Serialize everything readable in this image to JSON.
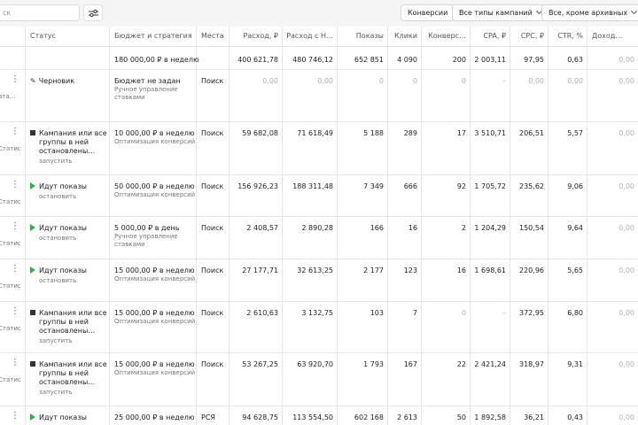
{
  "toolbar": {
    "search_placeholder": "ск",
    "filter_icon": "sliders-icon",
    "chip_conversions": "Конверсии",
    "chip_campaign_types": "Все типы кампаний",
    "chip_archive": "Все, кроме архивных"
  },
  "columns": [
    "Статус",
    "Бюджет и стратегия",
    "Места",
    "Расход, ₽",
    "Расход с Н…",
    "Показы",
    "Клики",
    "Конверс…",
    "CPA, ₽",
    "CPC, ₽",
    "CTR, %",
    "Доход…"
  ],
  "totals": {
    "budget": "180 000,00 ₽ в неделю",
    "spend": "400 621,78",
    "spend_vat": "480 746,12",
    "impressions": "652 851",
    "clicks": "4 090",
    "conversions": "200",
    "cpa": "2 003,11",
    "cpc": "97,95",
    "ctr": "0,63",
    "income": "0,00"
  },
  "rows": [
    {
      "left": "ата…",
      "status": [
        "Черновик"
      ],
      "status_icon": "pencil",
      "action": "",
      "budget": "Бюджет не задан",
      "strategy": [
        "Ручное управление",
        "ставками"
      ],
      "places": "Поиск",
      "spend": "0,00",
      "spend_vat": "0,00",
      "impressions": "0",
      "clicks": "0",
      "conversions": "0",
      "cpa": "–",
      "cpc": "0,00",
      "ctr": "0,00",
      "income": "0,00",
      "muted": true
    },
    {
      "left": "Статис",
      "status": [
        "Кампания или все",
        "группы в ней",
        "остановлены…"
      ],
      "status_icon": "stop",
      "action": "запустить",
      "budget": "10 000,00 ₽ в неделю",
      "strategy": [
        "Оптимизация конверсий"
      ],
      "places": "Поиск",
      "spend": "59 682,08",
      "spend_vat": "71 618,49",
      "impressions": "5 188",
      "clicks": "289",
      "conversions": "17",
      "cpa": "3 510,71",
      "cpc": "206,51",
      "ctr": "5,57",
      "income": "0,00",
      "muted": false
    },
    {
      "left": "Статис",
      "status": [
        "Идут показы"
      ],
      "status_icon": "play",
      "action": "остановить",
      "budget": "50 000,00 ₽ в неделю",
      "strategy": [
        "Оптимизация конверсий"
      ],
      "places": "Поиск",
      "spend": "156 926,23",
      "spend_vat": "188 311,48",
      "impressions": "7 349",
      "clicks": "666",
      "conversions": "92",
      "cpa": "1 705,72",
      "cpc": "235,62",
      "ctr": "9,06",
      "income": "0,00",
      "muted": false
    },
    {
      "left": "Статис",
      "status": [
        "Идут показы"
      ],
      "status_icon": "play",
      "action": "остановить",
      "budget": "5 000,00 ₽ в день",
      "strategy": [
        "Ручное управление",
        "ставками"
      ],
      "places": "Поиск",
      "spend": "2 408,57",
      "spend_vat": "2 890,28",
      "impressions": "166",
      "clicks": "16",
      "conversions": "2",
      "cpa": "1 204,29",
      "cpc": "150,54",
      "ctr": "9,64",
      "income": "0,00",
      "muted": false
    },
    {
      "left": "Статис",
      "status": [
        "Идут показы"
      ],
      "status_icon": "play",
      "action": "остановить",
      "budget": "15 000,00 ₽ в неделю",
      "strategy": [
        "Оптимизация конверсий"
      ],
      "places": "Поиск",
      "spend": "27 177,71",
      "spend_vat": "32 613,25",
      "impressions": "2 177",
      "clicks": "123",
      "conversions": "16",
      "cpa": "1 698,61",
      "cpc": "220,96",
      "ctr": "5,65",
      "income": "0,00",
      "muted": false
    },
    {
      "left": "Статис",
      "status": [
        "Кампания или все",
        "группы в ней",
        "остановлены…"
      ],
      "status_icon": "stop",
      "action": "запустить",
      "budget": "15 000,00 ₽ в неделю",
      "strategy": [
        "Оптимизация конверсий"
      ],
      "places": "Поиск",
      "spend": "2 610,63",
      "spend_vat": "3 132,75",
      "impressions": "103",
      "clicks": "7",
      "conversions": "0",
      "cpa": "–",
      "cpc": "372,95",
      "ctr": "6,80",
      "income": "0,00",
      "muted": false,
      "conv_muted": true
    },
    {
      "left": "Статис",
      "status": [
        "Кампания или все",
        "группы в ней",
        "остановлены…"
      ],
      "status_icon": "stop",
      "action": "запустить",
      "budget": "15 000,00 ₽ в неделю",
      "strategy": [
        "Оптимизация конверсий"
      ],
      "places": "Поиск",
      "spend": "53 267,25",
      "spend_vat": "63 920,70",
      "impressions": "1 793",
      "clicks": "167",
      "conversions": "22",
      "cpa": "2 421,24",
      "cpc": "318,97",
      "ctr": "9,31",
      "income": "0,00",
      "muted": false
    },
    {
      "left": "",
      "status": [
        "Идут показы"
      ],
      "status_icon": "play",
      "action": "",
      "budget": "25 000,00 ₽ в неделю",
      "strategy": [],
      "places": "РСЯ",
      "spend": "94 628,75",
      "spend_vat": "113 554,50",
      "impressions": "602 168",
      "clicks": "2 613",
      "conversions": "50",
      "cpa": "1 892,58",
      "cpc": "36,21",
      "ctr": "0,43",
      "income": "0,00",
      "muted": false
    }
  ]
}
